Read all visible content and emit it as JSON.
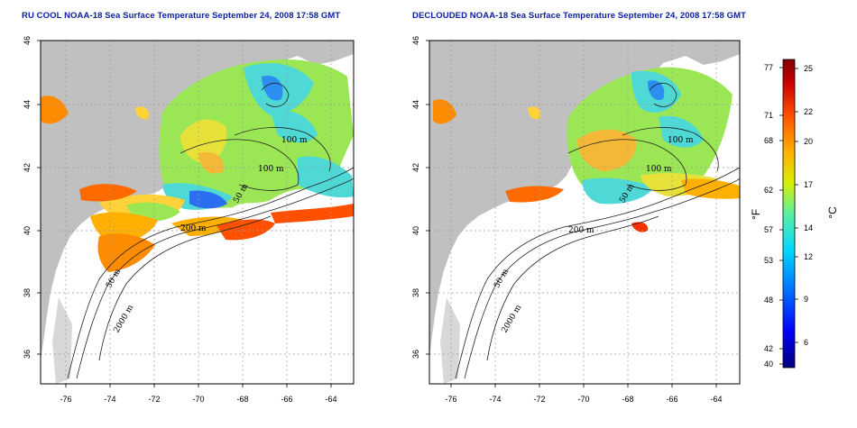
{
  "titles": {
    "left": "RU COOL NOAA-18 Sea Surface Temperature September 24, 2008 17:58 GMT",
    "right": "DECLOUDED NOAA-18 Sea Surface Temperature September 24, 2008 17:58 GMT"
  },
  "axes": {
    "x_ticks": [
      "-76",
      "-74",
      "-72",
      "-70",
      "-68",
      "-66",
      "-64"
    ],
    "y_ticks": [
      "46",
      "44",
      "42",
      "40",
      "38",
      "36"
    ],
    "x_range": [
      -77,
      -63
    ],
    "y_range": [
      35,
      46
    ]
  },
  "contour_labels": {
    "left": [
      "100 m",
      "100 m",
      "50 m",
      "200 m",
      "50 m",
      "2000 m"
    ],
    "right": [
      "100 m",
      "100 m",
      "50 m",
      "200 m",
      "50 m",
      "2000 m"
    ]
  },
  "colorbar": {
    "fahrenheit_ticks": [
      "77",
      "71",
      "68",
      "62",
      "57",
      "53",
      "48",
      "42",
      "40"
    ],
    "celsius_ticks": [
      "25",
      "22",
      "20",
      "17",
      "14",
      "12",
      "9",
      "6"
    ],
    "fahrenheit_label": "°F",
    "celsius_label": "°C",
    "colors": [
      "#00007a",
      "#0000ff",
      "#0070ff",
      "#00d8ff",
      "#5af0a0",
      "#d8f000",
      "#ffb000",
      "#ff5000",
      "#d00000",
      "#800000"
    ]
  },
  "colors": {
    "land": "#c0c0c0",
    "ocean": "#ffffff",
    "title": "#0a1ea0"
  }
}
